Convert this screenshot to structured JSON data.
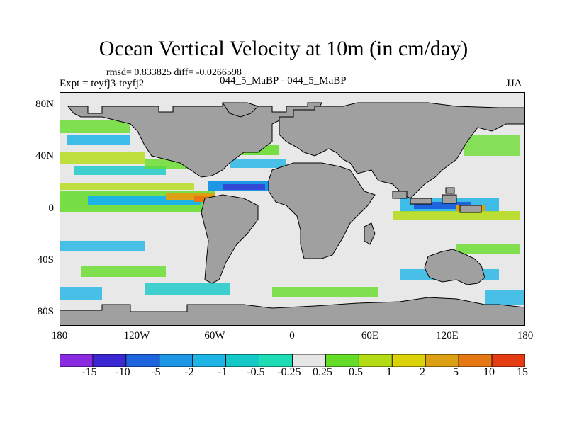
{
  "figure": {
    "title": "Ocean Vertical Velocity at 10m (in cm/day)",
    "stats": "rmsd= 0.833825 diff= -0.0266598",
    "expt": "Expt = teyfj3-teyfj2",
    "cases": "044_5_MaBP - 044_5_MaBP",
    "season": "JJA"
  },
  "axes": {
    "y_ticks": [
      "80N",
      "40N",
      "0",
      "40S",
      "80S"
    ],
    "x_ticks": [
      "180",
      "120W",
      "60W",
      "0",
      "60E",
      "120E",
      "180"
    ]
  },
  "colorbar": {
    "labels": [
      "-15",
      "-10",
      "-5",
      "-2",
      "-1",
      "-0.5",
      "-0.25",
      "0.25",
      "0.5",
      "1",
      "2",
      "5",
      "10",
      "15"
    ],
    "colors": [
      "#8a2be2",
      "#3c28d2",
      "#1e64dc",
      "#1e96e6",
      "#1eb4e6",
      "#14c8c8",
      "#1edcb4",
      "#e6e6e6",
      "#64dc28",
      "#b4dc14",
      "#dcd20a",
      "#dca014",
      "#e67814",
      "#e63c14"
    ]
  },
  "map": {
    "land_color": "#a0a0a0",
    "ocean_color": "#e8e8e8"
  }
}
